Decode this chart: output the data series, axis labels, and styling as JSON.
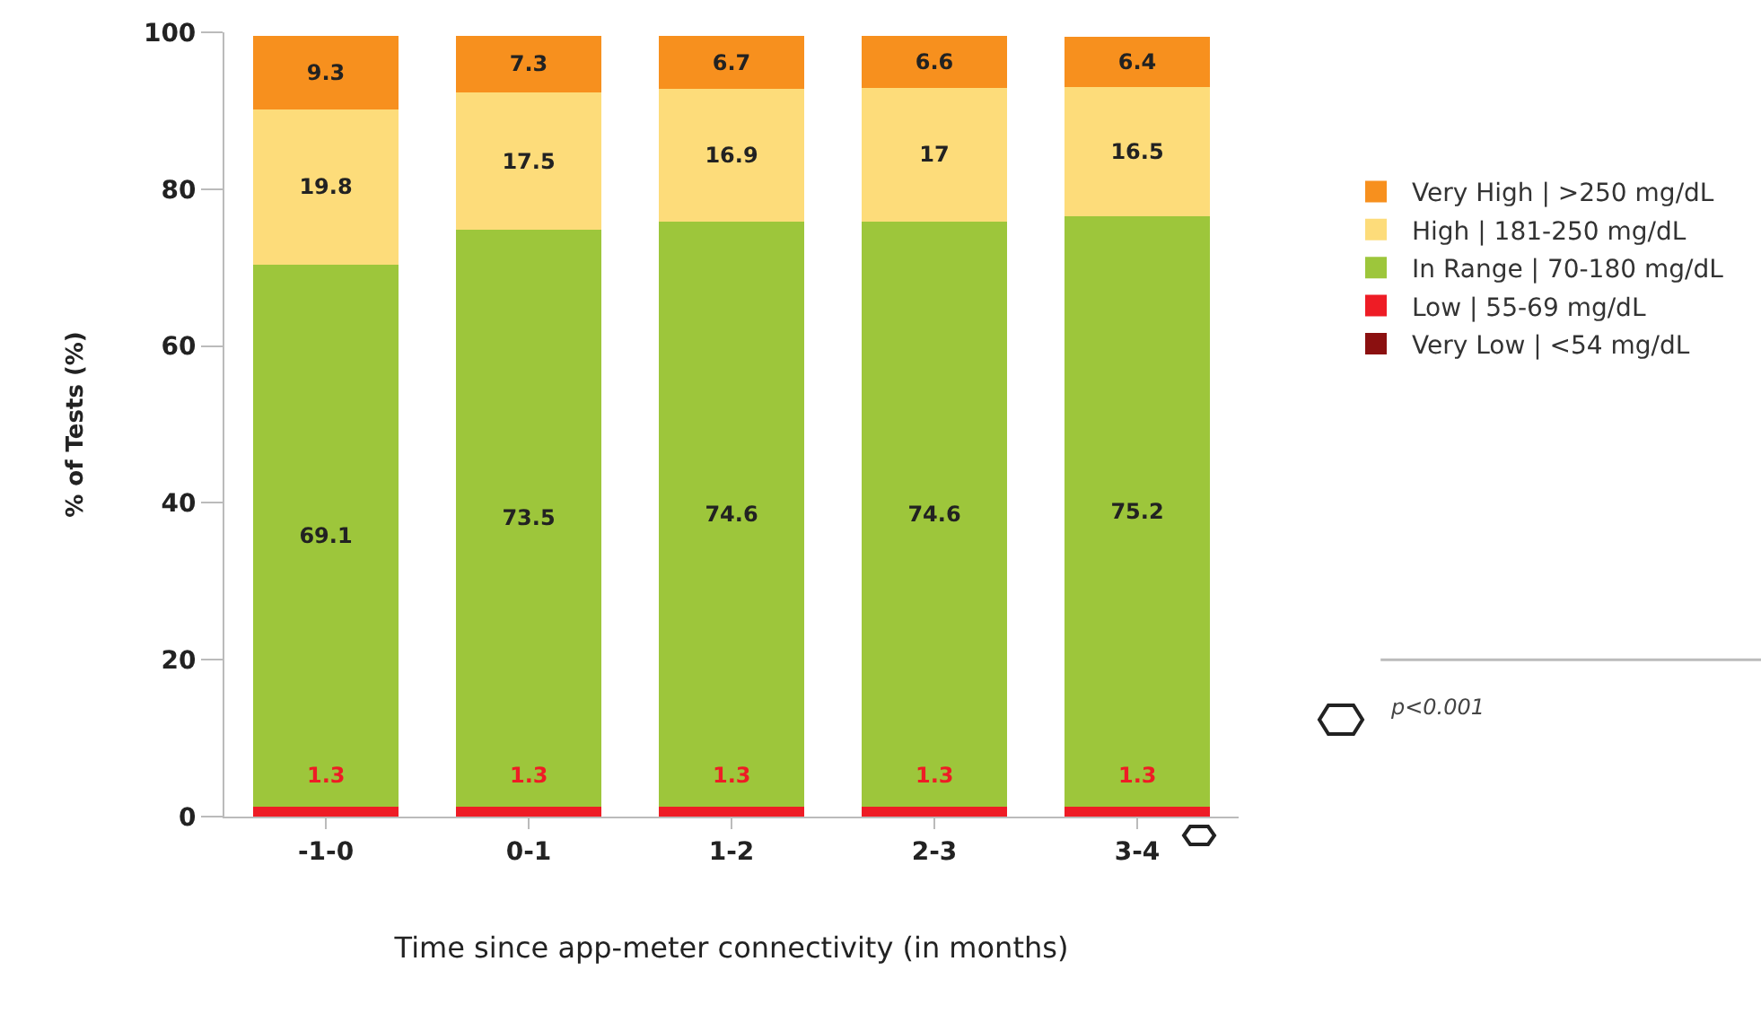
{
  "chart_data": {
    "type": "bar",
    "stacked": true,
    "xlabel": "Time since app-meter connectivity (in months)",
    "ylabel": "% of Tests (%)",
    "categories": [
      "-1-0",
      "0-1",
      "1-2",
      "2-3",
      "3-4"
    ],
    "series": [
      {
        "name": "Very Low | <54 mg/dL",
        "color": "#8b1010",
        "values": [
          null,
          null,
          null,
          null,
          null
        ]
      },
      {
        "name": "Low | 55-69 mg/dL",
        "color": "#ee1c25",
        "values": [
          1.3,
          1.3,
          1.3,
          1.3,
          1.3
        ]
      },
      {
        "name": "In Range | 70-180 mg/dL",
        "color": "#9dc63b",
        "values": [
          69.1,
          73.5,
          74.6,
          74.6,
          75.2
        ]
      },
      {
        "name": "High | 181-250 mg/dL",
        "color": "#fddc7a",
        "values": [
          19.8,
          17.5,
          16.9,
          17,
          16.5
        ]
      },
      {
        "name": "Very High | >250 mg/dL",
        "color": "#f7901e",
        "values": [
          9.3,
          7.3,
          6.7,
          6.6,
          6.4
        ]
      }
    ],
    "ylim": [
      0,
      100
    ],
    "yticks": [
      0,
      20,
      40,
      60,
      80,
      100
    ],
    "grid": false,
    "legend": "right",
    "data_labels": true,
    "annotations": [
      "p<0.001"
    ]
  }
}
